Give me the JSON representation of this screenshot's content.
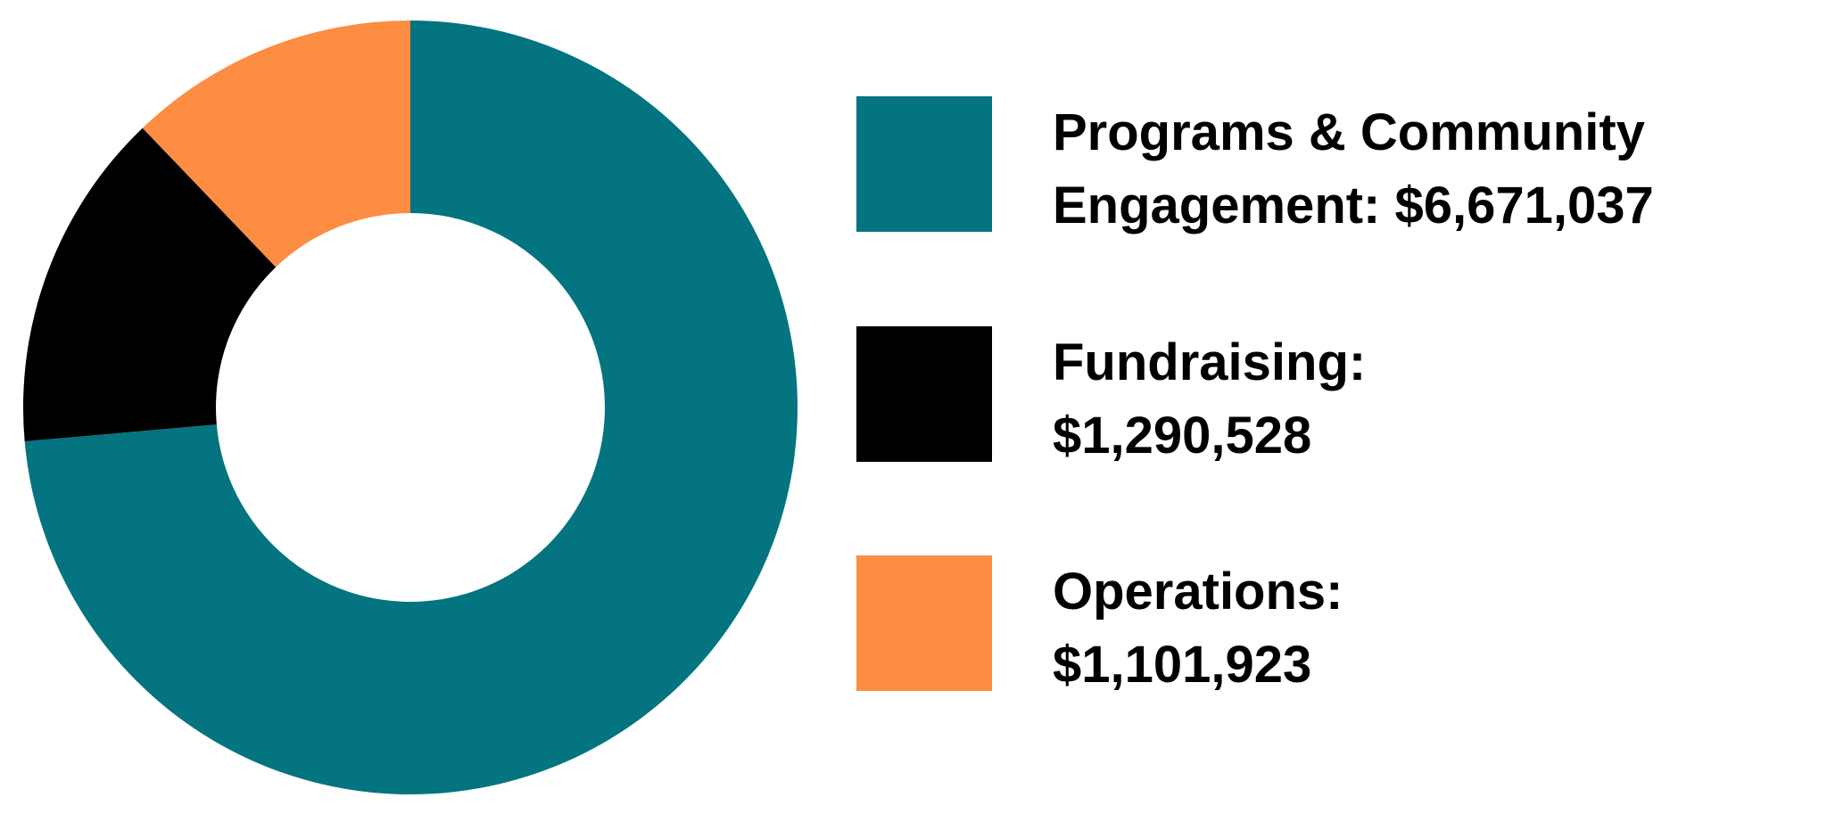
{
  "chart_data": {
    "type": "pie",
    "style": "donut",
    "legend_position": "right",
    "slices": [
      {
        "label_line1": "Programs & Community",
        "label_line2": "Engagement: $6,671,037",
        "value": 6671037,
        "color": "#037480"
      },
      {
        "label_line1": "Fundraising:",
        "label_line2": "$1,290,528",
        "value": 1290528,
        "color": "#000000"
      },
      {
        "label_line1": "Operations:",
        "label_line2": "$1,101,923",
        "value": 1101923,
        "color": "#fd8d42"
      }
    ]
  }
}
